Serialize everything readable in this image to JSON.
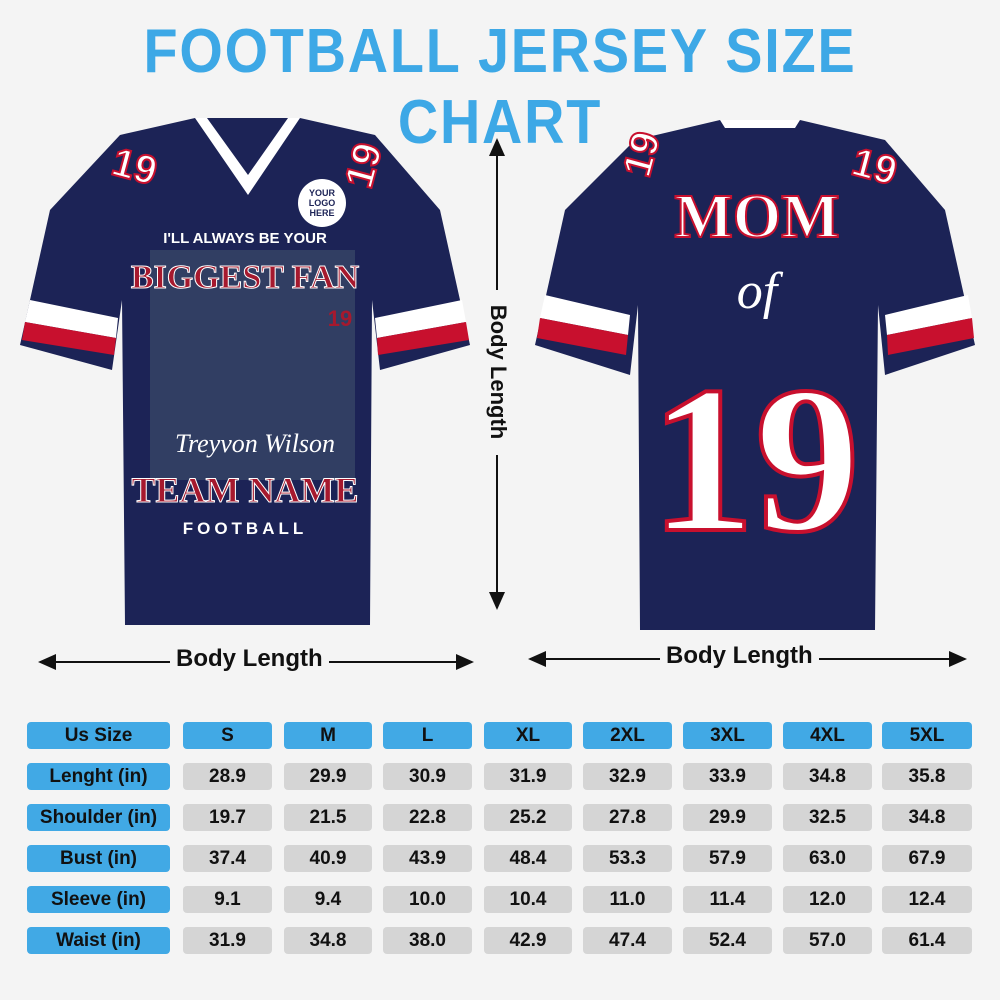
{
  "title": "FOOTBALL JERSEY SIZE CHART",
  "front": {
    "sleeve_number": "19",
    "logo_placeholder": [
      "YOUR",
      "LOGO",
      "HERE"
    ],
    "tagline": "I'LL ALWAYS BE YOUR",
    "headline": "BIGGEST FAN",
    "photo_number": "19",
    "player_name": "Treyvon Wilson",
    "team_name": "TEAM NAME",
    "sport": "FOOTBALL"
  },
  "back": {
    "sleeve_number": "19",
    "line1": "MOM",
    "line2": "of",
    "number": "19"
  },
  "measure_labels": {
    "vertical": "Body Length",
    "front_horizontal": "Body Length",
    "back_horizontal": "Body Length"
  },
  "colors": {
    "title": "#3da8e6",
    "jersey": "#1c2356",
    "accent_red": "#c8102e",
    "header_cell": "#41a9e5",
    "value_cell": "#d5d5d5"
  },
  "table": {
    "header": [
      "Us Size",
      "S",
      "M",
      "L",
      "XL",
      "2XL",
      "3XL",
      "4XL",
      "5XL"
    ],
    "rows": [
      {
        "label": "Lenght (in)",
        "values": [
          "28.9",
          "29.9",
          "30.9",
          "31.9",
          "32.9",
          "33.9",
          "34.8",
          "35.8"
        ]
      },
      {
        "label": "Shoulder (in)",
        "values": [
          "19.7",
          "21.5",
          "22.8",
          "25.2",
          "27.8",
          "29.9",
          "32.5",
          "34.8"
        ]
      },
      {
        "label": "Bust (in)",
        "values": [
          "37.4",
          "40.9",
          "43.9",
          "48.4",
          "53.3",
          "57.9",
          "63.0",
          "67.9"
        ]
      },
      {
        "label": "Sleeve (in)",
        "values": [
          "9.1",
          "9.4",
          "10.0",
          "10.4",
          "11.0",
          "11.4",
          "12.0",
          "12.4"
        ]
      },
      {
        "label": "Waist (in)",
        "values": [
          "31.9",
          "34.8",
          "38.0",
          "42.9",
          "47.4",
          "52.4",
          "57.0",
          "61.4"
        ]
      }
    ]
  }
}
